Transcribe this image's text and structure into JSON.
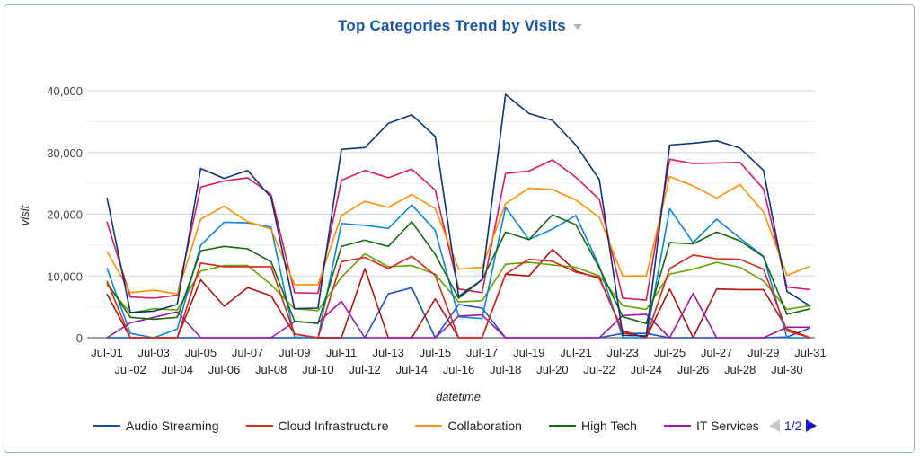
{
  "chart_data": {
    "type": "line",
    "title": "Top Categories Trend by Visits",
    "xlabel": "datetime",
    "ylabel": "visit",
    "ylim": [
      0,
      40000
    ],
    "yticks": [
      "0",
      "10,000",
      "20,000",
      "30,000",
      "40,000"
    ],
    "grid": true,
    "legend_position": "bottom",
    "legend_page": "1/2",
    "categories": [
      "Jul-01",
      "Jul-02",
      "Jul-03",
      "Jul-04",
      "Jul-05",
      "Jul-06",
      "Jul-07",
      "Jul-08",
      "Jul-09",
      "Jul-10",
      "Jul-11",
      "Jul-12",
      "Jul-13",
      "Jul-14",
      "Jul-15",
      "Jul-16",
      "Jul-17",
      "Jul-18",
      "Jul-19",
      "Jul-20",
      "Jul-21",
      "Jul-22",
      "Jul-23",
      "Jul-24",
      "Jul-25",
      "Jul-26",
      "Jul-27",
      "Jul-28",
      "Jul-29",
      "Jul-30",
      "Jul-31"
    ],
    "series": [
      {
        "name": "Audio Streaming",
        "color": "#0f3473",
        "legend_color": "#1a4fa3",
        "values": [
          22700,
          4100,
          4300,
          5400,
          27400,
          25800,
          27100,
          22700,
          4700,
          4800,
          30500,
          30800,
          34700,
          36100,
          32600,
          6700,
          9400,
          39400,
          36300,
          35200,
          31200,
          25600,
          400,
          300,
          31200,
          31500,
          31900,
          30700,
          27100,
          7500,
          5100
        ]
      },
      {
        "name": "Cloud Infrastructure",
        "color": "#d9261c",
        "legend_color": "#d93025",
        "values": [
          9200,
          0,
          0,
          0,
          12100,
          11500,
          11500,
          11500,
          600,
          0,
          12300,
          13000,
          11200,
          13200,
          10100,
          0,
          0,
          10300,
          12700,
          12400,
          10600,
          9800,
          800,
          100,
          11200,
          13400,
          12800,
          12700,
          11100,
          1100,
          0
        ]
      },
      {
        "name": "Collaboration",
        "color": "#ff8f00",
        "legend_color": "#f4901e",
        "values": [
          14000,
          7300,
          7700,
          7100,
          19200,
          21300,
          18800,
          17600,
          8600,
          8600,
          19800,
          22100,
          21100,
          23200,
          20900,
          11100,
          11400,
          21700,
          24200,
          24000,
          22300,
          19500,
          10000,
          10000,
          26100,
          24600,
          22600,
          24800,
          20400,
          10100,
          11600
        ]
      },
      {
        "name": "High Tech",
        "color": "#17680f",
        "legend_color": "#17680f",
        "values": [
          8900,
          3300,
          3000,
          3300,
          14100,
          14800,
          14400,
          12300,
          2700,
          2300,
          14800,
          15800,
          14800,
          18800,
          13500,
          6400,
          9400,
          17100,
          15900,
          19900,
          18300,
          11300,
          3400,
          2300,
          15400,
          15200,
          17100,
          15700,
          13100,
          3800,
          4700
        ]
      },
      {
        "name": "IT Services",
        "color": "#9b1aa6",
        "legend_color": "#9b1aa6",
        "values": [
          0,
          2400,
          3300,
          4200,
          0,
          0,
          0,
          0,
          2600,
          2400,
          5900,
          0,
          0,
          0,
          0,
          3500,
          3700,
          0,
          0,
          0,
          0,
          0,
          3600,
          3800,
          0,
          7200,
          0,
          0,
          0,
          1700,
          1700
        ]
      },
      {
        "color": "#d81b60",
        "values": [
          18800,
          6600,
          6400,
          6900,
          24400,
          25400,
          25900,
          23200,
          7300,
          7200,
          25500,
          27100,
          25900,
          27300,
          23900,
          7900,
          7300,
          26600,
          27000,
          28800,
          26000,
          22400,
          6400,
          6100,
          28900,
          28200,
          28300,
          28400,
          24100,
          8200,
          7800
        ]
      },
      {
        "color": "#0a86d6",
        "values": [
          11300,
          700,
          0,
          1400,
          15000,
          18700,
          18600,
          17900,
          100,
          0,
          18500,
          18200,
          17700,
          21500,
          17400,
          3400,
          3100,
          21100,
          15900,
          17600,
          19800,
          11600,
          0,
          0,
          20900,
          15400,
          19200,
          16100,
          13200,
          0,
          0
        ]
      },
      {
        "color": "#64a300",
        "values": [
          8600,
          4000,
          4700,
          4500,
          10800,
          11700,
          11700,
          8600,
          4700,
          4400,
          9800,
          13600,
          11500,
          11700,
          10300,
          5800,
          6000,
          11900,
          12200,
          11800,
          11400,
          10000,
          5200,
          4600,
          10300,
          11100,
          12200,
          11400,
          9200,
          4600,
          5200
        ]
      },
      {
        "color": "#b0140f",
        "values": [
          7100,
          0,
          0,
          0,
          9400,
          5100,
          8100,
          6800,
          600,
          0,
          0,
          11200,
          0,
          0,
          6300,
          0,
          0,
          10300,
          10000,
          14300,
          10800,
          9600,
          1100,
          0,
          7900,
          0,
          7900,
          7800,
          7800,
          1400,
          0
        ]
      },
      {
        "color": "#2050c8",
        "values": [
          0,
          0,
          0,
          0,
          0,
          0,
          0,
          0,
          0,
          0,
          0,
          0,
          7100,
          8100,
          0,
          5400,
          4800,
          0,
          0,
          0,
          0,
          0,
          700,
          700,
          0,
          0,
          0,
          0,
          0,
          100,
          1600
        ]
      }
    ]
  }
}
